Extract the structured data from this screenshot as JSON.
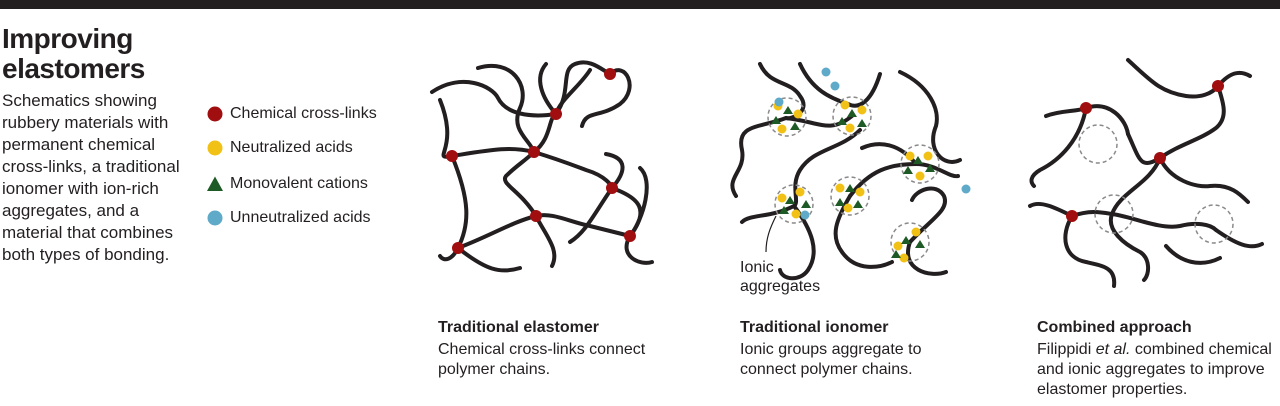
{
  "header": {
    "title": "Improving elastomers",
    "intro": "Schematics showing rubbery materials with permanent chemical cross-links, a traditional ionomer with ion-rich aggregates, and a material that combines both types of bonding."
  },
  "legend": {
    "items": [
      {
        "label": "Chemical cross-links",
        "icon": "red-circle",
        "color": "#a10e10"
      },
      {
        "label": "Neutralized acids",
        "icon": "yellow-circle",
        "color": "#f2c116"
      },
      {
        "label": "Monovalent cations",
        "icon": "green-triangle",
        "color": "#1e5a25"
      },
      {
        "label": "Unneutralized acids",
        "icon": "blue-circle",
        "color": "#5fa9c9"
      }
    ]
  },
  "colors": {
    "chain": "#231f20",
    "aggregate_outline": "#8a8a8a",
    "topbar": "#231f20"
  },
  "panels": [
    {
      "title": "Traditional elastomer",
      "text": "Chemical cross-links connect polymer chains."
    },
    {
      "title": "Traditional ionomer",
      "text": "Ionic groups aggregate to connect polymer chains.",
      "annotation": "Ionic aggregates"
    },
    {
      "title": "Combined approach",
      "text_before": "Filippidi",
      "text_italic": "et al.",
      "text_after": "combined chemical and ionic aggregates to improve elastomer properties."
    }
  ]
}
